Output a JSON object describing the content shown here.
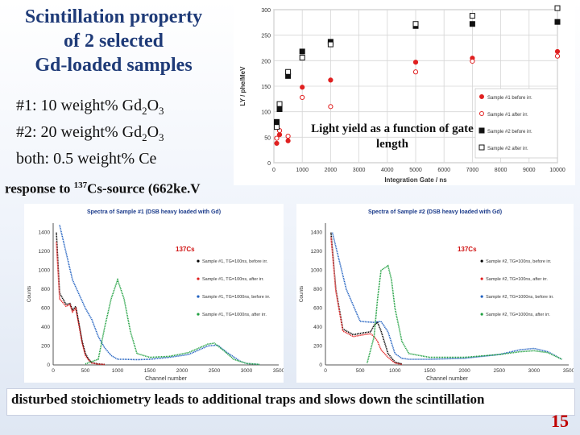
{
  "title": [
    "Scintillation property",
    "of 2 selected",
    "Gd-loaded samples"
  ],
  "samples": [
    {
      "prefix": "#1:   10 weight% Gd",
      "s1": "2",
      "mid": "O",
      "s2": "3"
    },
    {
      "prefix": "#2:   20 weight% Gd",
      "s1": "2",
      "mid": "O",
      "s2": "3"
    },
    {
      "prefix": "both:   0.5 weight%   Ce",
      "s1": "",
      "mid": "",
      "s2": ""
    }
  ],
  "response": {
    "pre": "response to ",
    "sup": "137",
    "post": "Cs-source (662ke.V"
  },
  "caption": "Light yield as a function of gate length",
  "footer": "disturbed stoichiometry leads to additional traps and slows down the scintillation",
  "page_number": "15",
  "chart_data": [
    {
      "type": "scatter",
      "title": "",
      "xlabel": "Integration Gate / ns",
      "ylabel": "LY / phe/MeV",
      "xlim": [
        0,
        10000
      ],
      "ylim": [
        0,
        300
      ],
      "xticks": [
        0,
        1000,
        2000,
        3000,
        4000,
        5000,
        6000,
        7000,
        8000,
        9000,
        10000
      ],
      "yticks": [
        0,
        50,
        100,
        150,
        200,
        250,
        300
      ],
      "grid": true,
      "legend_position": "right",
      "series": [
        {
          "name": "Sample #1 before irr.",
          "color": "#e02020",
          "marker": "filled-circle",
          "x": [
            100,
            200,
            500,
            1000,
            2000,
            5000,
            7000,
            10000
          ],
          "y": [
            38,
            55,
            43,
            148,
            162,
            197,
            205,
            218
          ]
        },
        {
          "name": "Sample #1 after irr.",
          "color": "#e02020",
          "marker": "open-circle",
          "x": [
            100,
            200,
            500,
            1000,
            2000,
            5000,
            7000,
            10000
          ],
          "y": [
            48,
            63,
            52,
            128,
            110,
            178,
            199,
            209
          ]
        },
        {
          "name": "Sample #2 before irr.",
          "color": "#111111",
          "marker": "filled-square",
          "x": [
            100,
            200,
            500,
            1000,
            2000,
            5000,
            7000,
            10000
          ],
          "y": [
            80,
            105,
            170,
            218,
            237,
            268,
            272,
            276
          ]
        },
        {
          "name": "Sample #2 after irr.",
          "color": "#111111",
          "marker": "open-square",
          "x": [
            100,
            200,
            500,
            1000,
            2000,
            5000,
            7000,
            10000
          ],
          "y": [
            70,
            115,
            178,
            206,
            232,
            272,
            288,
            303
          ]
        }
      ]
    },
    {
      "type": "line",
      "title": "Spectra of Sample #1 (DSB heavy loaded with Gd)",
      "annotation": "137Cs",
      "xlabel": "Channel number",
      "ylabel": "Counts",
      "xlim": [
        0,
        3500
      ],
      "ylim": [
        0,
        1500
      ],
      "xticks": [
        0,
        500,
        1000,
        1500,
        2000,
        2500,
        3000,
        3500
      ],
      "yticks": [
        0,
        200,
        400,
        600,
        800,
        1000,
        1200,
        1400
      ],
      "legend_position": "right",
      "series": [
        {
          "name": "Sample #1, TG=100ns, before irr.",
          "color": "#000000",
          "x": [
            50,
            100,
            200,
            260,
            300,
            350,
            400,
            450,
            500,
            550,
            600,
            700,
            800
          ],
          "y": [
            1400,
            760,
            640,
            650,
            580,
            620,
            440,
            250,
            120,
            60,
            25,
            10,
            5
          ]
        },
        {
          "name": "Sample #1, TG=100ns, after irr.",
          "color": "#e02020",
          "x": [
            50,
            100,
            200,
            260,
            300,
            350,
            400,
            450,
            500,
            550,
            600,
            700,
            800
          ],
          "y": [
            1300,
            700,
            620,
            640,
            560,
            600,
            420,
            230,
            100,
            50,
            20,
            8,
            5
          ]
        },
        {
          "name": "Sample #1, TG=1000ns, before irr.",
          "color": "#2060c0",
          "x": [
            100,
            300,
            500,
            600,
            700,
            800,
            900,
            1000,
            1100,
            1300,
            1500,
            1800,
            2100,
            2400,
            2550,
            2700,
            2900,
            3000,
            3200
          ],
          "y": [
            1480,
            900,
            600,
            480,
            300,
            180,
            100,
            60,
            60,
            55,
            60,
            80,
            110,
            200,
            210,
            130,
            40,
            15,
            5
          ]
        },
        {
          "name": "Sample #1, TG=1000ns, after irr.",
          "color": "#20a040",
          "x": [
            500,
            700,
            800,
            900,
            1000,
            1100,
            1200,
            1300,
            1500,
            1800,
            2100,
            2400,
            2500,
            2650,
            2800,
            3000,
            3200
          ],
          "y": [
            10,
            60,
            400,
            700,
            900,
            700,
            350,
            120,
            80,
            90,
            130,
            220,
            230,
            150,
            60,
            15,
            5
          ]
        }
      ]
    },
    {
      "type": "line",
      "title": "Spectra of Sample #2 (DSB heavy loaded with Gd)",
      "annotation": "137Cs",
      "xlabel": "Channel number",
      "ylabel": "Counts",
      "xlim": [
        0,
        3500
      ],
      "ylim": [
        0,
        1500
      ],
      "xticks": [
        0,
        500,
        1000,
        1500,
        2000,
        2500,
        3000,
        3500
      ],
      "yticks": [
        0,
        200,
        400,
        600,
        800,
        1000,
        1200,
        1400
      ],
      "legend_position": "right",
      "series": [
        {
          "name": "Sample #2, TG=100ns, before irr.",
          "color": "#000000",
          "x": [
            80,
            150,
            250,
            400,
            550,
            650,
            700,
            750,
            800,
            900,
            1000,
            1100
          ],
          "y": [
            1400,
            800,
            380,
            320,
            340,
            350,
            420,
            450,
            360,
            120,
            30,
            10
          ]
        },
        {
          "name": "Sample #2, TG=100ns, after irr.",
          "color": "#e02020",
          "x": [
            80,
            150,
            250,
            400,
            550,
            650,
            700,
            750,
            800,
            900,
            1000,
            1100
          ],
          "y": [
            1350,
            780,
            360,
            300,
            320,
            330,
            300,
            250,
            160,
            80,
            20,
            5
          ]
        },
        {
          "name": "Sample #2, TG=1000ns, before irr.",
          "color": "#2060c0",
          "x": [
            100,
            300,
            500,
            700,
            800,
            900,
            1000,
            1100,
            1200,
            1500,
            2000,
            2500,
            2800,
            3000,
            3200,
            3400
          ],
          "y": [
            1400,
            800,
            460,
            450,
            460,
            350,
            120,
            70,
            60,
            60,
            70,
            110,
            160,
            175,
            140,
            60
          ]
        },
        {
          "name": "Sample #2, TG=1000ns, after irr.",
          "color": "#20a040",
          "x": [
            600,
            700,
            750,
            800,
            900,
            950,
            1000,
            1100,
            1200,
            1500,
            2000,
            2500,
            2800,
            3000,
            3200,
            3400
          ],
          "y": [
            20,
            300,
            700,
            1000,
            1050,
            900,
            600,
            250,
            120,
            80,
            80,
            110,
            140,
            150,
            130,
            60
          ]
        }
      ]
    }
  ]
}
